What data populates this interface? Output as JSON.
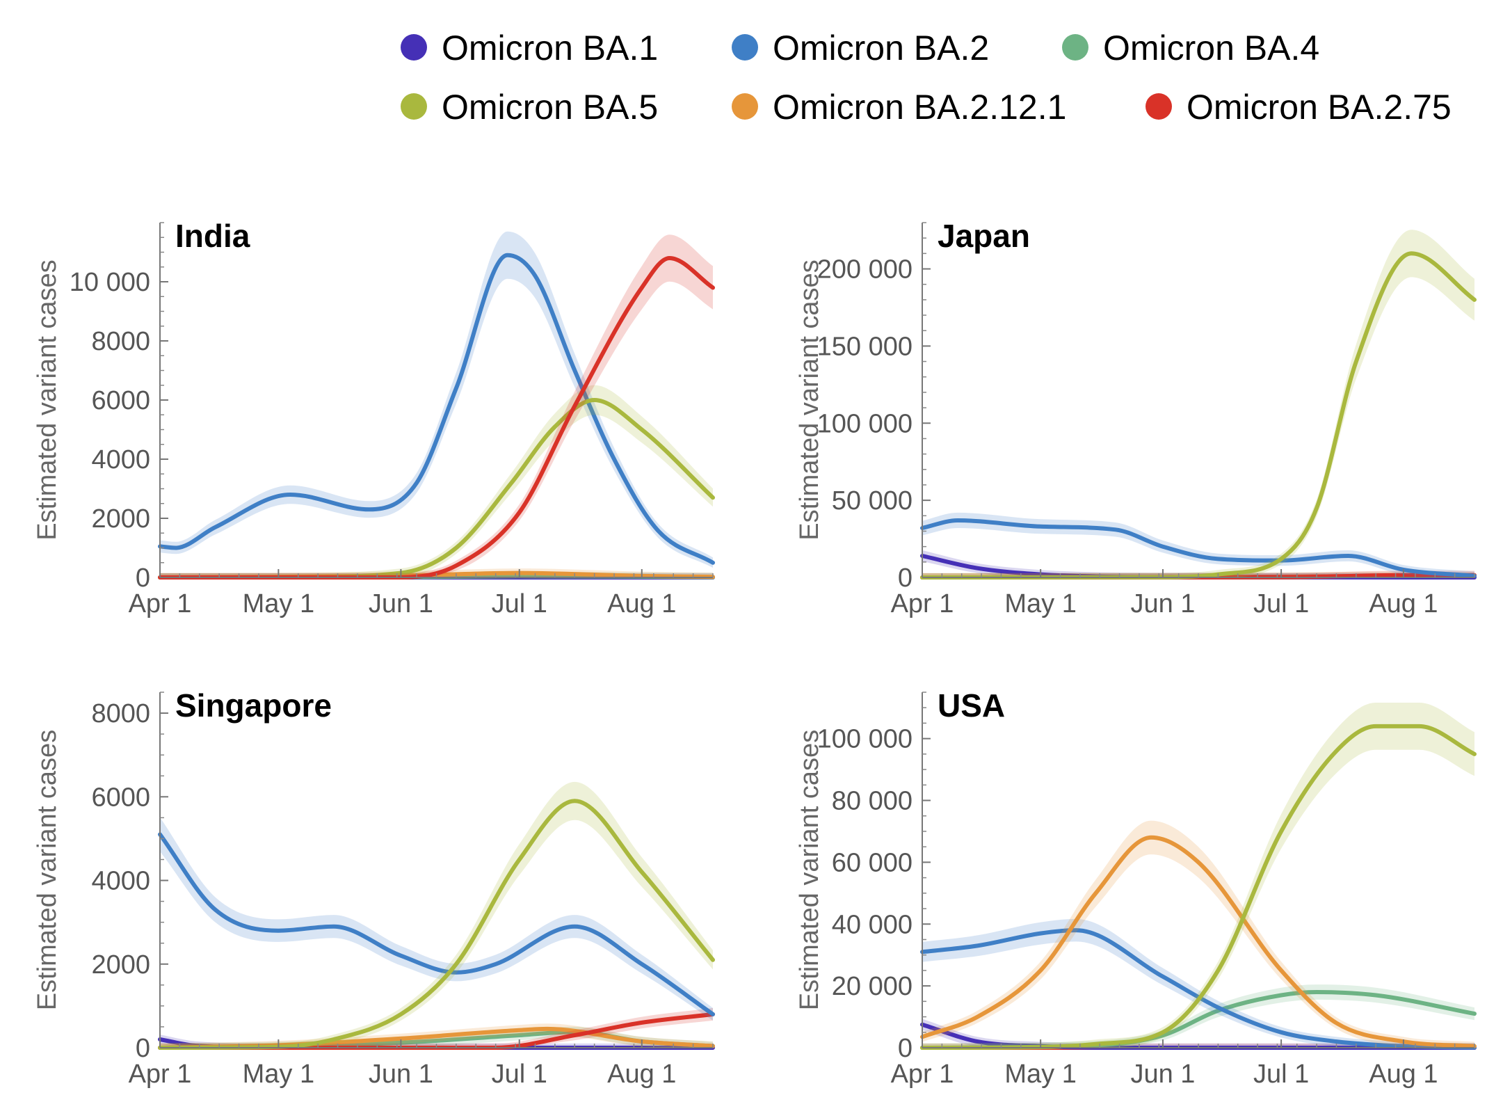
{
  "legend": [
    {
      "name": "Omicron BA.1",
      "color": "#4530b6"
    },
    {
      "name": "Omicron BA.2",
      "color": "#3f7fc6"
    },
    {
      "name": "Omicron BA.4",
      "color": "#6db384"
    },
    {
      "name": "Omicron BA.5",
      "color": "#a9b83e"
    },
    {
      "name": "Omicron BA.2.12.1",
      "color": "#e6963a"
    },
    {
      "name": "Omicron BA.2.75",
      "color": "#d93228"
    }
  ],
  "chart_data": [
    {
      "type": "line",
      "title": "India",
      "ylabel": "Estimated variant cases",
      "x_ticks": [
        "Apr 1",
        "May 1",
        "Jun 1",
        "Jul 1",
        "Aug 1"
      ],
      "xlim": [
        "2022-04-01",
        "2022-08-19"
      ],
      "ylim": [
        0,
        12000
      ],
      "y_ticks": [
        {
          "value": 0,
          "label": "0"
        },
        {
          "value": 2000,
          "label": "2000"
        },
        {
          "value": 4000,
          "label": "4000"
        },
        {
          "value": 6000,
          "label": "6000"
        },
        {
          "value": 8000,
          "label": "8000"
        },
        {
          "value": 10000,
          "label": "10 000"
        }
      ],
      "y_minor_step": 500,
      "confidence_band": true,
      "series": [
        {
          "name": "Omicron BA.1",
          "x": [
            "2022-04-01",
            "2022-08-19"
          ],
          "values": [
            0,
            0
          ]
        },
        {
          "name": "Omicron BA.4",
          "x": [
            "2022-04-01",
            "2022-06-01",
            "2022-07-01",
            "2022-08-19"
          ],
          "values": [
            0,
            10,
            40,
            10
          ]
        },
        {
          "name": "Omicron BA.2.12.1",
          "x": [
            "2022-04-01",
            "2022-05-01",
            "2022-06-01",
            "2022-07-01",
            "2022-08-01",
            "2022-08-19"
          ],
          "values": [
            0,
            20,
            60,
            150,
            50,
            20
          ]
        },
        {
          "name": "Omicron BA.2",
          "x": [
            "2022-04-01",
            "2022-04-05",
            "2022-04-15",
            "2022-05-04",
            "2022-05-24",
            "2022-06-05",
            "2022-06-15",
            "2022-06-28",
            "2022-07-05",
            "2022-07-15",
            "2022-07-25",
            "2022-08-05",
            "2022-08-19"
          ],
          "values": [
            1050,
            1000,
            1700,
            2800,
            2300,
            3200,
            6400,
            10900,
            10200,
            7000,
            4000,
            1600,
            500
          ]
        },
        {
          "name": "Omicron BA.5",
          "x": [
            "2022-04-01",
            "2022-05-01",
            "2022-06-01",
            "2022-06-15",
            "2022-06-29",
            "2022-07-10",
            "2022-07-20",
            "2022-08-01",
            "2022-08-19"
          ],
          "values": [
            0,
            0,
            150,
            1000,
            3200,
            5100,
            6000,
            5000,
            2700
          ]
        },
        {
          "name": "Omicron BA.2.75",
          "x": [
            "2022-04-01",
            "2022-06-01",
            "2022-06-15",
            "2022-07-01",
            "2022-07-15",
            "2022-08-01",
            "2022-08-08",
            "2022-08-19"
          ],
          "values": [
            0,
            0,
            400,
            2200,
            5800,
            9800,
            10800,
            9800
          ]
        }
      ]
    },
    {
      "type": "line",
      "title": "Japan",
      "ylabel": "Estimated variant cases",
      "x_ticks": [
        "Apr 1",
        "May 1",
        "Jun 1",
        "Jul 1",
        "Aug 1"
      ],
      "xlim": [
        "2022-04-01",
        "2022-08-19"
      ],
      "ylim": [
        0,
        230000
      ],
      "y_ticks": [
        {
          "value": 0,
          "label": "0"
        },
        {
          "value": 50000,
          "label": "50 000"
        },
        {
          "value": 100000,
          "label": "100 000"
        },
        {
          "value": 150000,
          "label": "150 000"
        },
        {
          "value": 200000,
          "label": "200 000"
        }
      ],
      "y_minor_step": 10000,
      "confidence_band": true,
      "series": [
        {
          "name": "Omicron BA.4",
          "x": [
            "2022-04-01",
            "2022-07-01",
            "2022-08-19"
          ],
          "values": [
            0,
            200,
            300
          ]
        },
        {
          "name": "Omicron BA.2.12.1",
          "x": [
            "2022-04-01",
            "2022-07-01",
            "2022-08-01",
            "2022-08-19"
          ],
          "values": [
            0,
            500,
            1000,
            500
          ]
        },
        {
          "name": "Omicron BA.1",
          "x": [
            "2022-04-01",
            "2022-04-15",
            "2022-05-01",
            "2022-05-15",
            "2022-06-01",
            "2022-08-19"
          ],
          "values": [
            14000,
            6000,
            2000,
            600,
            200,
            0
          ]
        },
        {
          "name": "Omicron BA.2.75",
          "x": [
            "2022-04-01",
            "2022-07-01",
            "2022-08-01",
            "2022-08-19"
          ],
          "values": [
            0,
            100,
            1500,
            1500
          ]
        },
        {
          "name": "Omicron BA.2",
          "x": [
            "2022-04-01",
            "2022-04-10",
            "2022-05-01",
            "2022-05-20",
            "2022-06-01",
            "2022-06-15",
            "2022-07-01",
            "2022-07-18",
            "2022-08-01",
            "2022-08-19"
          ],
          "values": [
            32000,
            37000,
            33000,
            31000,
            20000,
            12000,
            11000,
            14000,
            5000,
            1000
          ]
        },
        {
          "name": "Omicron BA.5",
          "x": [
            "2022-04-01",
            "2022-06-01",
            "2022-06-15",
            "2022-07-01",
            "2022-07-10",
            "2022-07-20",
            "2022-08-03",
            "2022-08-19"
          ],
          "values": [
            0,
            100,
            2000,
            12000,
            45000,
            140000,
            210000,
            180000
          ]
        }
      ]
    },
    {
      "type": "line",
      "title": "Singapore",
      "ylabel": "Estimated variant cases",
      "x_ticks": [
        "Apr 1",
        "May 1",
        "Jun 1",
        "Jul 1",
        "Aug 1"
      ],
      "xlim": [
        "2022-04-01",
        "2022-08-19"
      ],
      "ylim": [
        0,
        8500
      ],
      "y_ticks": [
        {
          "value": 0,
          "label": "0"
        },
        {
          "value": 2000,
          "label": "2000"
        },
        {
          "value": 4000,
          "label": "4000"
        },
        {
          "value": 6000,
          "label": "6000"
        },
        {
          "value": 8000,
          "label": "8000"
        }
      ],
      "y_minor_step": 500,
      "confidence_band": true,
      "series": [
        {
          "name": "Omicron BA.1",
          "x": [
            "2022-04-01",
            "2022-04-10",
            "2022-05-01",
            "2022-08-19"
          ],
          "values": [
            200,
            50,
            0,
            0
          ]
        },
        {
          "name": "Omicron BA.4",
          "x": [
            "2022-04-01",
            "2022-05-01",
            "2022-06-01",
            "2022-07-01",
            "2022-07-15",
            "2022-08-01",
            "2022-08-19"
          ],
          "values": [
            0,
            40,
            120,
            300,
            380,
            150,
            40
          ]
        },
        {
          "name": "Omicron BA.2.12.1",
          "x": [
            "2022-04-01",
            "2022-05-01",
            "2022-06-01",
            "2022-07-01",
            "2022-07-08",
            "2022-08-01",
            "2022-08-19"
          ],
          "values": [
            0,
            60,
            220,
            420,
            450,
            150,
            40
          ]
        },
        {
          "name": "Omicron BA.2.75",
          "x": [
            "2022-04-01",
            "2022-06-25",
            "2022-07-15",
            "2022-08-01",
            "2022-08-19"
          ],
          "values": [
            0,
            0,
            300,
            600,
            800
          ]
        },
        {
          "name": "Omicron BA.2",
          "x": [
            "2022-04-01",
            "2022-04-15",
            "2022-05-01",
            "2022-05-15",
            "2022-06-01",
            "2022-06-15",
            "2022-06-25",
            "2022-07-15",
            "2022-08-01",
            "2022-08-19"
          ],
          "values": [
            5100,
            3300,
            2800,
            2900,
            2200,
            1800,
            2000,
            2900,
            2000,
            800
          ]
        },
        {
          "name": "Omicron BA.5",
          "x": [
            "2022-04-01",
            "2022-05-01",
            "2022-05-15",
            "2022-06-01",
            "2022-06-15",
            "2022-07-01",
            "2022-07-15",
            "2022-08-01",
            "2022-08-19"
          ],
          "values": [
            0,
            20,
            200,
            800,
            2000,
            4500,
            5900,
            4200,
            2100
          ]
        }
      ]
    },
    {
      "type": "line",
      "title": "USA",
      "ylabel": "Estimated variant cases",
      "x_ticks": [
        "Apr 1",
        "May 1",
        "Jun 1",
        "Jul 1",
        "Aug 1"
      ],
      "xlim": [
        "2022-04-01",
        "2022-08-19"
      ],
      "ylim": [
        0,
        115000
      ],
      "y_ticks": [
        {
          "value": 0,
          "label": "0"
        },
        {
          "value": 20000,
          "label": "20 000"
        },
        {
          "value": 40000,
          "label": "40 000"
        },
        {
          "value": 60000,
          "label": "60 000"
        },
        {
          "value": 80000,
          "label": "80 000"
        },
        {
          "value": 100000,
          "label": "100 000"
        }
      ],
      "y_minor_step": 5000,
      "confidence_band": true,
      "series": [
        {
          "name": "Omicron BA.2.75",
          "x": [
            "2022-04-01",
            "2022-08-19"
          ],
          "values": [
            0,
            0
          ]
        },
        {
          "name": "Omicron BA.1",
          "x": [
            "2022-04-01",
            "2022-04-15",
            "2022-05-01",
            "2022-05-20",
            "2022-08-19"
          ],
          "values": [
            7500,
            2000,
            500,
            0,
            0
          ]
        },
        {
          "name": "Omicron BA.4",
          "x": [
            "2022-04-01",
            "2022-05-15",
            "2022-06-01",
            "2022-06-15",
            "2022-07-01",
            "2022-07-10",
            "2022-07-25",
            "2022-08-19"
          ],
          "values": [
            0,
            800,
            4000,
            12000,
            17000,
            18000,
            17000,
            11000
          ]
        },
        {
          "name": "Omicron BA.2",
          "x": [
            "2022-04-01",
            "2022-04-15",
            "2022-05-01",
            "2022-05-10",
            "2022-06-01",
            "2022-06-15",
            "2022-07-01",
            "2022-07-15",
            "2022-08-01",
            "2022-08-19"
          ],
          "values": [
            31000,
            33000,
            37000,
            38000,
            23000,
            13000,
            5000,
            2000,
            500,
            100
          ]
        },
        {
          "name": "Omicron BA.2.12.1",
          "x": [
            "2022-04-01",
            "2022-04-15",
            "2022-05-01",
            "2022-05-15",
            "2022-05-29",
            "2022-06-10",
            "2022-07-01",
            "2022-07-15",
            "2022-08-01",
            "2022-08-19"
          ],
          "values": [
            3500,
            10000,
            25000,
            50000,
            68000,
            60000,
            25000,
            8000,
            2000,
            500
          ]
        },
        {
          "name": "Omicron BA.5",
          "x": [
            "2022-04-01",
            "2022-05-01",
            "2022-05-15",
            "2022-06-01",
            "2022-06-15",
            "2022-07-01",
            "2022-07-15",
            "2022-07-25",
            "2022-08-05",
            "2022-08-19"
          ],
          "values": [
            0,
            200,
            1200,
            5000,
            25000,
            70000,
            96000,
            104000,
            104000,
            95000
          ]
        }
      ]
    }
  ]
}
